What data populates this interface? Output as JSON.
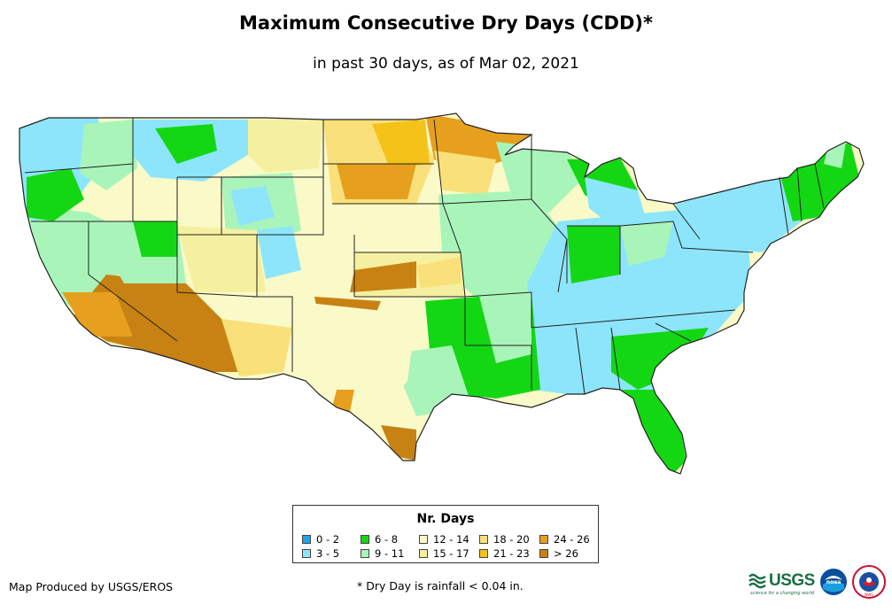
{
  "title": "Maximum Consecutive Dry Days (CDD)*",
  "subtitle": "in past 30 days, as of Mar 02, 2021",
  "legend": {
    "title": "Nr. Days",
    "items": [
      {
        "label": "0 - 2",
        "color": "#1ea5f0"
      },
      {
        "label": "3 - 5",
        "color": "#8de5fb"
      },
      {
        "label": "6 - 8",
        "color": "#14d714"
      },
      {
        "label": "9 - 11",
        "color": "#a9f5b9"
      },
      {
        "label": "12 - 14",
        "color": "#fafac8"
      },
      {
        "label": "15 - 17",
        "color": "#f5f0a0"
      },
      {
        "label": "18 - 20",
        "color": "#fae07a"
      },
      {
        "label": "21 - 23",
        "color": "#f5c21a"
      },
      {
        "label": "24 - 26",
        "color": "#e6a01e"
      },
      {
        "label": "> 26",
        "color": "#c88214"
      }
    ]
  },
  "footer": {
    "producer": "Map Produced by USGS/EROS",
    "note": "* Dry Day is rainfall < 0.04 in."
  },
  "logos": {
    "usgs": "USGS",
    "usgs_tagline": "science for a changing world",
    "noaa": "noaa",
    "nws": "NWS"
  }
}
